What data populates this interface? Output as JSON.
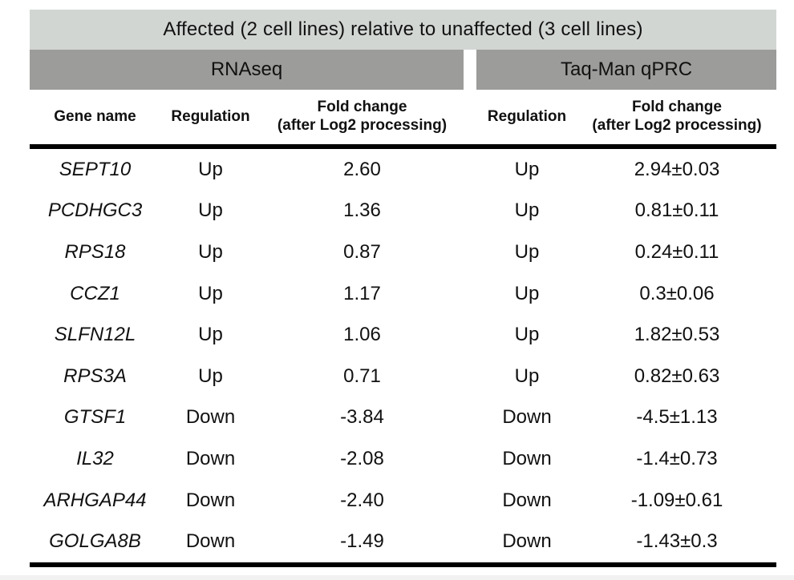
{
  "table": {
    "title": "Affected (2 cell lines) relative to unaffected (3 cell lines)",
    "sections": {
      "left": "RNAseq",
      "right": "Taq-Man qPRC"
    },
    "columns": {
      "gene": "Gene name",
      "regulation_left": "Regulation",
      "fold_left_line1": "Fold change",
      "fold_left_line2": "(after Log2 processing)",
      "regulation_right": "Regulation",
      "fold_right_line1": "Fold change",
      "fold_right_line2": "(after Log2 processing)"
    },
    "rows": [
      {
        "gene": "SEPT10",
        "rnaseq_regulation": "Up",
        "rnaseq_fold": "2.60",
        "taqman_regulation": "Up",
        "taqman_fold": "2.94±0.03"
      },
      {
        "gene": "PCDHGC3",
        "rnaseq_regulation": "Up",
        "rnaseq_fold": "1.36",
        "taqman_regulation": "Up",
        "taqman_fold": "0.81±0.11"
      },
      {
        "gene": "RPS18",
        "rnaseq_regulation": "Up",
        "rnaseq_fold": "0.87",
        "taqman_regulation": "Up",
        "taqman_fold": "0.24±0.11"
      },
      {
        "gene": "CCZ1",
        "rnaseq_regulation": "Up",
        "rnaseq_fold": "1.17",
        "taqman_regulation": "Up",
        "taqman_fold": "0.3±0.06"
      },
      {
        "gene": "SLFN12L",
        "rnaseq_regulation": "Up",
        "rnaseq_fold": "1.06",
        "taqman_regulation": "Up",
        "taqman_fold": "1.82±0.53"
      },
      {
        "gene": "RPS3A",
        "rnaseq_regulation": "Up",
        "rnaseq_fold": "0.71",
        "taqman_regulation": "Up",
        "taqman_fold": "0.82±0.63"
      },
      {
        "gene": "GTSF1",
        "rnaseq_regulation": "Down",
        "rnaseq_fold": "-3.84",
        "taqman_regulation": "Down",
        "taqman_fold": "-4.5±1.13"
      },
      {
        "gene": "IL32",
        "rnaseq_regulation": "Down",
        "rnaseq_fold": "-2.08",
        "taqman_regulation": "Down",
        "taqman_fold": "-1.4±0.73"
      },
      {
        "gene": "ARHGAP44",
        "rnaseq_regulation": "Down",
        "rnaseq_fold": "-2.40",
        "taqman_regulation": "Down",
        "taqman_fold": "-1.09±0.61"
      },
      {
        "gene": "GOLGA8B",
        "rnaseq_regulation": "Down",
        "rnaseq_fold": "-1.49",
        "taqman_regulation": "Down",
        "taqman_fold": "-1.43±0.3"
      }
    ],
    "colors": {
      "title_band": "#d2d6d3",
      "section_band": "#9c9c9a",
      "rule": "#000000"
    }
  }
}
